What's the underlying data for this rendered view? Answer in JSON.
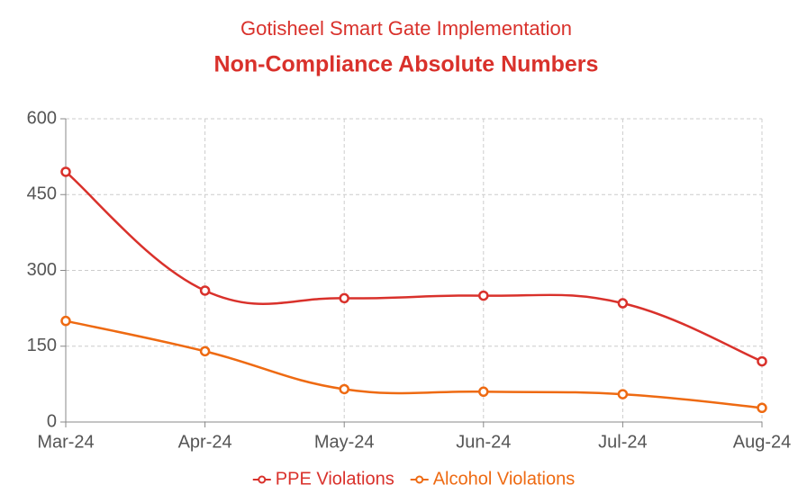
{
  "chart_data": {
    "type": "line",
    "title": "Gotisheel Smart Gate Implementation",
    "subtitle": "Non-Compliance Absolute Numbers",
    "categories": [
      "Mar-24",
      "Apr-24",
      "May-24",
      "Jun-24",
      "Jul-24",
      "Aug-24"
    ],
    "series": [
      {
        "name": "PPE Violations",
        "color": "#d9312b",
        "values": [
          495,
          260,
          245,
          250,
          235,
          120
        ]
      },
      {
        "name": "Alcohol Violations",
        "color": "#ee6a12",
        "values": [
          200,
          140,
          65,
          60,
          55,
          28
        ]
      }
    ],
    "ylim": [
      0,
      600
    ],
    "yticks": [
      0,
      150,
      300,
      450,
      600
    ],
    "grid": true,
    "legend": "bottom"
  }
}
